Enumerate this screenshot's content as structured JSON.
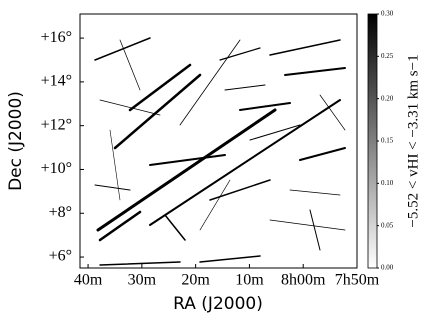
{
  "chart_data": {
    "type": "image",
    "xlabel": "RA (J2000)",
    "ylabel": "Dec (J2000)",
    "xlim": [
      521.5,
      470
    ],
    "ylim": [
      5.5,
      17.1
    ],
    "xticks": [
      {
        "value": 520,
        "label": "40m"
      },
      {
        "value": 510,
        "label": "30m"
      },
      {
        "value": 500,
        "label": "20m"
      },
      {
        "value": 490,
        "label": "10m"
      },
      {
        "value": 480,
        "label": "8h00m"
      },
      {
        "value": 470,
        "label": "7h50m"
      }
    ],
    "yticks": [
      {
        "value": 16,
        "label": "+16°"
      },
      {
        "value": 14,
        "label": "+14°"
      },
      {
        "value": 12,
        "label": "+12°"
      },
      {
        "value": 10,
        "label": "+10°"
      },
      {
        "value": 8,
        "label": "+8°"
      },
      {
        "value": 6,
        "label": "+6°"
      }
    ],
    "colormap": "gray_r",
    "colorbar": {
      "label": "−5.52 < vHI < −3.31 km s−1",
      "clim": [
        0,
        0.3
      ],
      "ticks": [
        {
          "value": 0,
          "label": "0.00"
        },
        {
          "value": 0.05,
          "label": "0.05"
        },
        {
          "value": 0.1,
          "label": "0.10"
        },
        {
          "value": 0.15,
          "label": "0.15"
        },
        {
          "value": 0.2,
          "label": "0.20"
        },
        {
          "value": 0.25,
          "label": "0.25"
        },
        {
          "value": 0.3,
          "label": "0.30"
        }
      ]
    }
  }
}
